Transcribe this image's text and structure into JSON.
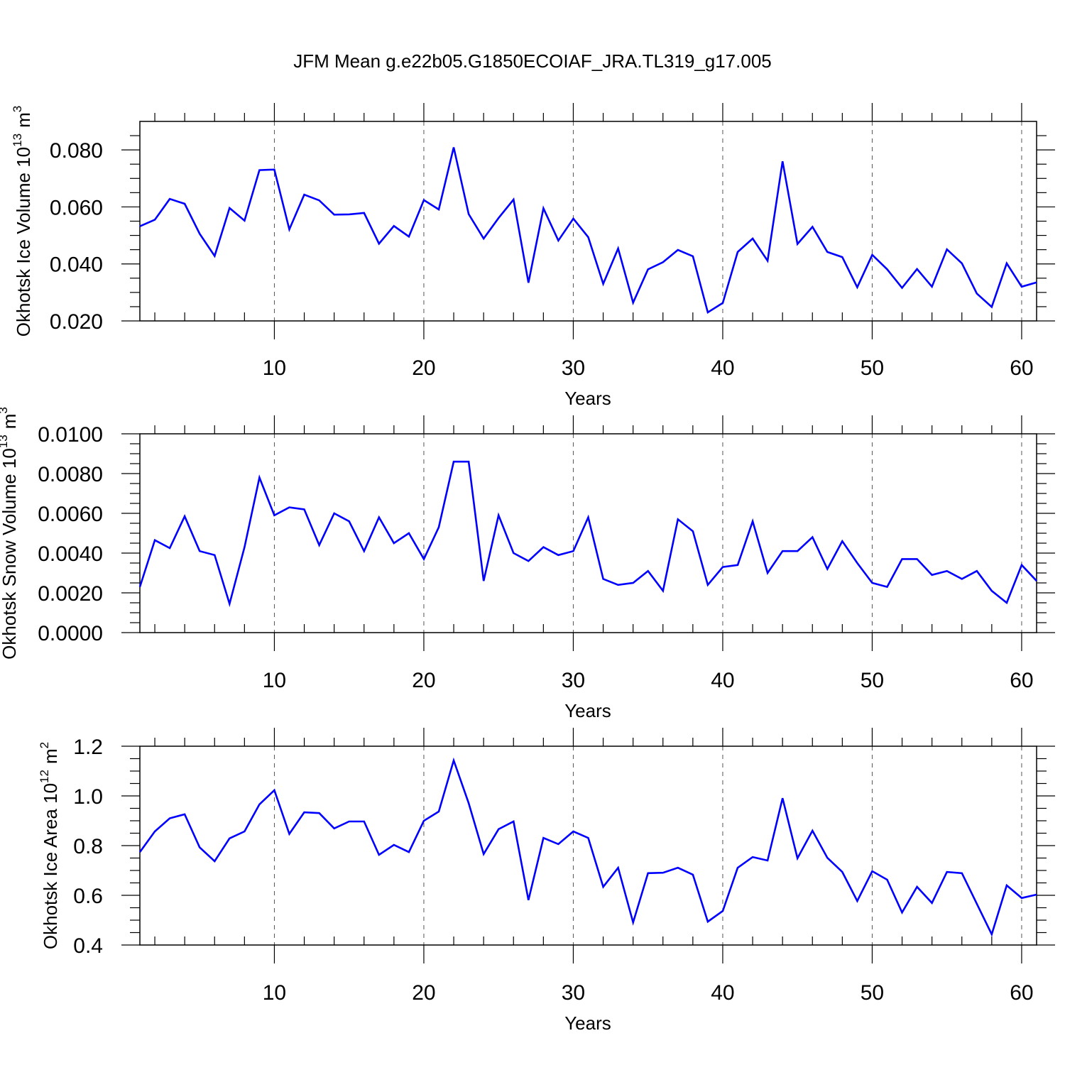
{
  "figure": {
    "title": "JFM Mean g.e22b05.G1850ECOIAF_JRA.TL319_g17.005",
    "line_color": "#0000ff"
  },
  "chart_data": [
    {
      "type": "line",
      "xlabel": "Years",
      "ylabel_main": "Okhotsk Ice Volume 10",
      "ylabel_exp": "13",
      "ylabel_unit": "m",
      "ylabel_unit_exp": "3",
      "xlim": [
        1,
        61
      ],
      "ylim": [
        0.02,
        0.09
      ],
      "xticks": [
        10,
        20,
        30,
        40,
        50,
        60
      ],
      "xtick_labels": [
        "10",
        "20",
        "30",
        "40",
        "50",
        "60"
      ],
      "yticks": [
        0.02,
        0.04,
        0.06,
        0.08
      ],
      "ytick_labels": [
        "0.020",
        "0.040",
        "0.060",
        "0.080"
      ],
      "grid": "vertical dashed at major x ticks",
      "x": [
        1,
        2,
        3,
        4,
        5,
        6,
        7,
        8,
        9,
        10,
        11,
        12,
        13,
        14,
        15,
        16,
        17,
        18,
        19,
        20,
        21,
        22,
        23,
        24,
        25,
        26,
        27,
        28,
        29,
        30,
        31,
        32,
        33,
        34,
        35,
        36,
        37,
        38,
        39,
        40,
        41,
        42,
        43,
        44,
        45,
        46,
        47,
        48,
        49,
        50,
        51,
        52,
        53,
        54,
        55,
        56,
        57,
        58,
        59,
        60,
        61
      ],
      "y": [
        0.0532,
        0.0555,
        0.0628,
        0.0611,
        0.0506,
        0.0428,
        0.0596,
        0.0552,
        0.0729,
        0.0731,
        0.0521,
        0.0643,
        0.0623,
        0.0573,
        0.0574,
        0.0579,
        0.0471,
        0.0533,
        0.0496,
        0.0624,
        0.0591,
        0.0809,
        0.0575,
        0.0489,
        0.0561,
        0.0626,
        0.0334,
        0.0595,
        0.0482,
        0.0559,
        0.0494,
        0.033,
        0.0454,
        0.0264,
        0.0381,
        0.0406,
        0.0449,
        0.0427,
        0.023,
        0.0263,
        0.0442,
        0.0489,
        0.0411,
        0.076,
        0.047,
        0.053,
        0.0442,
        0.0424,
        0.0318,
        0.0432,
        0.0381,
        0.0316,
        0.0382,
        0.032,
        0.0451,
        0.0402,
        0.0296,
        0.0249,
        0.0402,
        0.032,
        0.0335
      ]
    },
    {
      "type": "line",
      "xlabel": "Years",
      "ylabel_main": "Okhotsk Snow Volume 10",
      "ylabel_exp": "13",
      "ylabel_unit": "m",
      "ylabel_unit_exp": "3",
      "xlim": [
        1,
        61
      ],
      "ylim": [
        0.0,
        0.01
      ],
      "xticks": [
        10,
        20,
        30,
        40,
        50,
        60
      ],
      "xtick_labels": [
        "10",
        "20",
        "30",
        "40",
        "50",
        "60"
      ],
      "yticks": [
        0.0,
        0.002,
        0.004,
        0.006,
        0.008,
        0.01
      ],
      "ytick_labels": [
        "0.0000",
        "0.0020",
        "0.0040",
        "0.0060",
        "0.0080",
        "0.0100"
      ],
      "grid": "vertical dashed at major x ticks",
      "x": [
        1,
        2,
        3,
        4,
        5,
        6,
        7,
        8,
        9,
        10,
        11,
        12,
        13,
        14,
        15,
        16,
        17,
        18,
        19,
        20,
        21,
        22,
        23,
        24,
        25,
        26,
        27,
        28,
        29,
        30,
        31,
        32,
        33,
        34,
        35,
        36,
        37,
        38,
        39,
        40,
        41,
        42,
        43,
        44,
        45,
        46,
        47,
        48,
        49,
        50,
        51,
        52,
        53,
        54,
        55,
        56,
        57,
        58,
        59,
        60,
        61
      ],
      "y": [
        0.0023,
        0.00465,
        0.00425,
        0.00585,
        0.0041,
        0.0039,
        0.00145,
        0.0043,
        0.0078,
        0.0059,
        0.0063,
        0.0062,
        0.0044,
        0.006,
        0.0056,
        0.0041,
        0.0058,
        0.0045,
        0.005,
        0.0037,
        0.0053,
        0.0086,
        0.0086,
        0.0026,
        0.0059,
        0.004,
        0.0036,
        0.0043,
        0.0039,
        0.0041,
        0.0058,
        0.0027,
        0.0024,
        0.0025,
        0.0031,
        0.0021,
        0.0057,
        0.0051,
        0.0024,
        0.0033,
        0.0034,
        0.0056,
        0.003,
        0.0041,
        0.0041,
        0.0048,
        0.0032,
        0.0046,
        0.0035,
        0.0025,
        0.0023,
        0.0037,
        0.0037,
        0.0029,
        0.0031,
        0.0027,
        0.0031,
        0.0021,
        0.0015,
        0.0034,
        0.0026
      ]
    },
    {
      "type": "line",
      "xlabel": "Years",
      "ylabel_main": "Okhotsk Ice Area 10",
      "ylabel_exp": "12",
      "ylabel_unit": "m",
      "ylabel_unit_exp": "2",
      "xlim": [
        1,
        61
      ],
      "ylim": [
        0.4,
        1.2
      ],
      "xticks": [
        10,
        20,
        30,
        40,
        50,
        60
      ],
      "xtick_labels": [
        "10",
        "20",
        "30",
        "40",
        "50",
        "60"
      ],
      "yticks": [
        0.4,
        0.6,
        0.8,
        1.0,
        1.2
      ],
      "ytick_labels": [
        "0.4",
        "0.6",
        "0.8",
        "1.0",
        "1.2"
      ],
      "grid": "vertical dashed at major x ticks",
      "x": [
        1,
        2,
        3,
        4,
        5,
        6,
        7,
        8,
        9,
        10,
        11,
        12,
        13,
        14,
        15,
        16,
        17,
        18,
        19,
        20,
        21,
        22,
        23,
        24,
        25,
        26,
        27,
        28,
        29,
        30,
        31,
        32,
        33,
        34,
        35,
        36,
        37,
        38,
        39,
        40,
        41,
        42,
        43,
        44,
        45,
        46,
        47,
        48,
        49,
        50,
        51,
        52,
        53,
        54,
        55,
        56,
        57,
        58,
        59,
        60,
        61
      ],
      "y": [
        0.774,
        0.857,
        0.91,
        0.926,
        0.793,
        0.737,
        0.829,
        0.857,
        0.966,
        1.023,
        0.847,
        0.934,
        0.931,
        0.869,
        0.897,
        0.897,
        0.763,
        0.803,
        0.774,
        0.9,
        0.937,
        1.143,
        0.971,
        0.766,
        0.866,
        0.897,
        0.581,
        0.831,
        0.806,
        0.857,
        0.831,
        0.634,
        0.711,
        0.491,
        0.689,
        0.691,
        0.711,
        0.683,
        0.494,
        0.537,
        0.711,
        0.754,
        0.74,
        0.991,
        0.749,
        0.86,
        0.751,
        0.694,
        0.577,
        0.697,
        0.663,
        0.531,
        0.634,
        0.569,
        0.694,
        0.689,
        0.566,
        0.443,
        0.64,
        0.589,
        0.603
      ]
    }
  ]
}
